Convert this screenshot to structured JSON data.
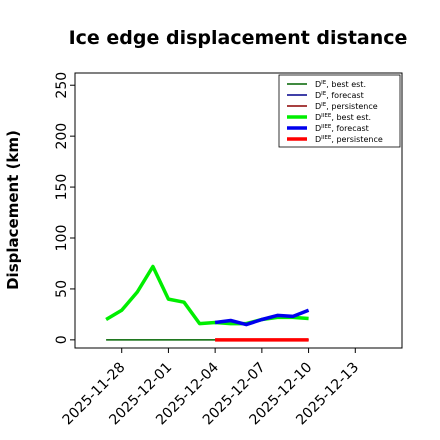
{
  "chart_data": {
    "type": "line",
    "title": "Ice edge displacement distance",
    "ylabel": "Displacement (km)",
    "xlabel": "",
    "ylim": [
      -8,
      262
    ],
    "xlim": [
      "2025-11-25",
      "2025-12-16"
    ],
    "yticks": [
      0,
      50,
      100,
      150,
      200,
      250
    ],
    "xticks": [
      {
        "date": "2025-11-28",
        "label": "2025-11-28",
        "color": "#000000"
      },
      {
        "date": "2025-12-01",
        "label": "2025-12-01",
        "color": "#000000"
      },
      {
        "date": "2025-12-04",
        "label": "2025-12-04",
        "color": "#008000"
      },
      {
        "date": "2025-12-07",
        "label": "2025-12-07",
        "color": "#000000"
      },
      {
        "date": "2025-12-10",
        "label": "2025-12-10",
        "color": "#000000"
      },
      {
        "date": "2025-12-13",
        "label": "2025-12-13",
        "color": "#000000"
      }
    ],
    "legend_position": "top-right",
    "series": [
      {
        "name": "D^IE, best est.",
        "color": "#006400",
        "width": 1.5,
        "x": [
          "2025-11-27",
          "2025-11-28",
          "2025-11-29",
          "2025-11-30",
          "2025-12-01",
          "2025-12-02",
          "2025-12-03",
          "2025-12-04",
          "2025-12-05",
          "2025-12-06",
          "2025-12-07",
          "2025-12-08",
          "2025-12-09",
          "2025-12-10"
        ],
        "y": [
          0,
          0,
          0,
          0,
          0,
          0,
          0,
          0,
          0,
          0,
          0,
          0,
          0,
          0
        ]
      },
      {
        "name": "D^IE, forecast",
        "color": "#00008b",
        "width": 1.5,
        "x": [
          "2025-12-04",
          "2025-12-05",
          "2025-12-06",
          "2025-12-07",
          "2025-12-08",
          "2025-12-09",
          "2025-12-10"
        ],
        "y": [
          0,
          0,
          0,
          0,
          0,
          0,
          0
        ]
      },
      {
        "name": "D^IE, persistence",
        "color": "#8b0000",
        "width": 1.5,
        "x": [
          "2025-12-04",
          "2025-12-05",
          "2025-12-06",
          "2025-12-07",
          "2025-12-08",
          "2025-12-09",
          "2025-12-10"
        ],
        "y": [
          0,
          0,
          0,
          0,
          0,
          0,
          0
        ]
      },
      {
        "name": "D^IIEE, best est.",
        "color": "#00ee00",
        "width": 3.5,
        "x": [
          "2025-11-27",
          "2025-11-28",
          "2025-11-29",
          "2025-11-30",
          "2025-12-01",
          "2025-12-02",
          "2025-12-03",
          "2025-12-04",
          "2025-12-05",
          "2025-12-06",
          "2025-12-07",
          "2025-12-08",
          "2025-12-09",
          "2025-12-10"
        ],
        "y": [
          20,
          29,
          47,
          72,
          40,
          37,
          16,
          17,
          16,
          16,
          20,
          22,
          22,
          21
        ]
      },
      {
        "name": "D^IIEE, forecast",
        "color": "#0000ee",
        "width": 3.5,
        "x": [
          "2025-12-04",
          "2025-12-05",
          "2025-12-06",
          "2025-12-07",
          "2025-12-08",
          "2025-12-09",
          "2025-12-10"
        ],
        "y": [
          17,
          19,
          15,
          20,
          24,
          23,
          29
        ]
      },
      {
        "name": "D^IIEE, persistence",
        "color": "#ff0000",
        "width": 3.5,
        "x": [
          "2025-12-04",
          "2025-12-05",
          "2025-12-06",
          "2025-12-07",
          "2025-12-08",
          "2025-12-09",
          "2025-12-10"
        ],
        "y": [
          0,
          0,
          0,
          0,
          0,
          0,
          0
        ]
      }
    ],
    "legend": [
      {
        "base": "D",
        "sup": "IE",
        "suffix": ", best est.",
        "color": "#006400",
        "width": 1.5
      },
      {
        "base": "D",
        "sup": "IE",
        "suffix": ", forecast",
        "color": "#00008b",
        "width": 1.5
      },
      {
        "base": "D",
        "sup": "IE",
        "suffix": ", persistence",
        "color": "#8b0000",
        "width": 1.5
      },
      {
        "base": "D",
        "sup": "IIEE",
        "suffix": ", best est.",
        "color": "#00ee00",
        "width": 3.5
      },
      {
        "base": "D",
        "sup": "IIEE",
        "suffix": ", forecast",
        "color": "#0000ee",
        "width": 3.5
      },
      {
        "base": "D",
        "sup": "IIEE",
        "suffix": ", persistence",
        "color": "#ff0000",
        "width": 3.5
      }
    ]
  }
}
